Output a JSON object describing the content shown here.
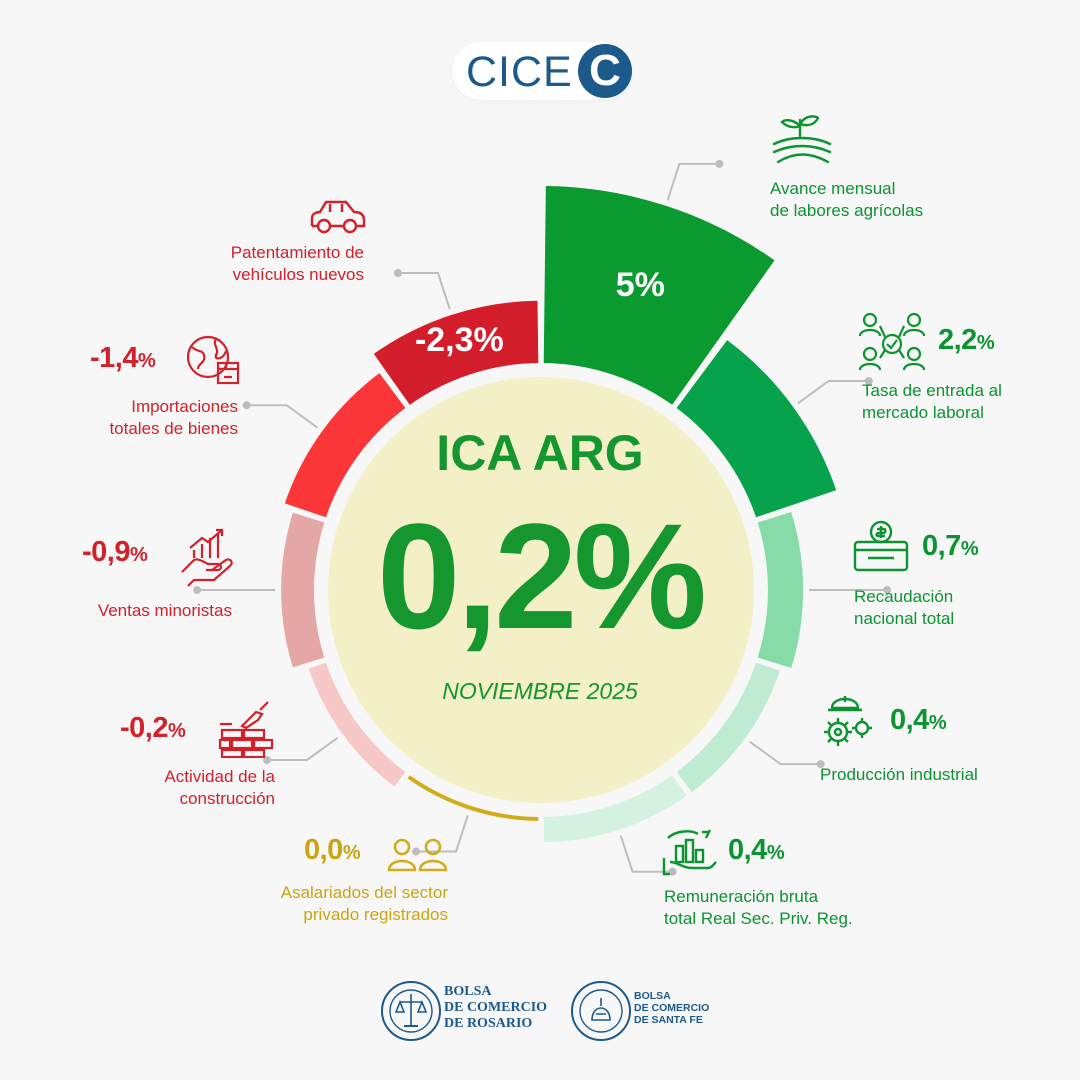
{
  "brand": {
    "logo_text": "CICE",
    "logo_letter": "C"
  },
  "center": {
    "title": "ICA ARG",
    "value": "0,2%",
    "date": "NOVIEMBRE 2025"
  },
  "colors": {
    "green": "#0b9431",
    "red": "#d3202a",
    "yellow": "#c9a512",
    "center_fill": "#f3efc6"
  },
  "chart_data": {
    "type": "polar-area",
    "title": "ICA ARG",
    "value_label": "0,2%",
    "period": "NOVIEMBRE 2025",
    "segments": [
      {
        "label": "Avance mensual de labores agrícolas",
        "value": 5.0,
        "value_label": "5%",
        "color": "#0b9a2f"
      },
      {
        "label": "Tasa de entrada al mercado laboral",
        "value": 2.2,
        "value_label": "2,2%",
        "color": "#06a24c"
      },
      {
        "label": "Recaudación nacional total",
        "value": 0.7,
        "value_label": "0,7%",
        "color": "#86dba8"
      },
      {
        "label": "Producción industrial",
        "value": 0.4,
        "value_label": "0,4%",
        "color": "#bfebd2"
      },
      {
        "label": "Remuneración bruta total Real Sec. Priv. Reg.",
        "value": 0.4,
        "value_label": "0,4%",
        "color": "#d4f1e1"
      },
      {
        "label": "Asalariados del sector privado registrados",
        "value": 0.0,
        "value_label": "0,0%",
        "color": "#d1ad1c"
      },
      {
        "label": "Actividad de la construcción",
        "value": -0.2,
        "value_label": "-0,2%",
        "color": "#f6c8c8"
      },
      {
        "label": "Ventas minoristas",
        "value": -0.9,
        "value_label": "-0,9%",
        "color": "#e5a6a6"
      },
      {
        "label": "Importaciones totales de bienes",
        "value": -1.4,
        "value_label": "-1,4%",
        "color": "#fb3639"
      },
      {
        "label": "Patentamiento de vehículos nuevos",
        "value": -2.3,
        "value_label": "-2,3%",
        "color": "#d41d2a"
      }
    ]
  },
  "indicators": {
    "agro": {
      "line1": "Avance mensual",
      "line2": "de labores agrícolas",
      "value": "5%"
    },
    "laboral": {
      "line1": "Tasa de entrada al",
      "line2": "mercado laboral",
      "value": "2,2",
      "pct": "%"
    },
    "recaudacion": {
      "line1": "Recaudación",
      "line2": "nacional total",
      "value": "0,7",
      "pct": "%"
    },
    "industrial": {
      "line1": "Producción industrial",
      "value": "0,4",
      "pct": "%"
    },
    "remuneracion": {
      "line1": "Remuneración bruta",
      "line2": "total Real Sec. Priv. Reg.",
      "value": "0,4",
      "pct": "%"
    },
    "asalariados": {
      "line1": "Asalariados del sector",
      "line2": "privado registrados",
      "value": "0,0",
      "pct": "%"
    },
    "construccion": {
      "line1": "Actividad de la",
      "line2": "construcción",
      "value": "-0,2",
      "pct": "%"
    },
    "minoristas": {
      "line1": "Ventas minoristas",
      "value": "-0,9",
      "pct": "%"
    },
    "importaciones": {
      "line1": "Importaciones",
      "line2": "totales de bienes",
      "value": "-1,4",
      "pct": "%"
    },
    "patentamiento": {
      "line1": "Patentamiento de",
      "line2": "vehículos nuevos",
      "value": "-2,3%"
    }
  },
  "footer": {
    "bcr": {
      "l1": "BOLSA",
      "l2": "DE COMERCIO",
      "l3": "DE ROSARIO"
    },
    "bcsf": {
      "l1": "BOLSA",
      "l2": "DE COMERCIO",
      "l3": "DE SANTA FE"
    }
  },
  "icons": {
    "agro": "plant-field-icon",
    "laboral": "people-network-icon",
    "recaudacion": "money-box-icon",
    "industrial": "gears-helmet-icon",
    "remuneracion": "hand-chart-icon",
    "asalariados": "two-people-icon",
    "construccion": "bricks-trowel-icon",
    "minoristas": "hand-growth-icon",
    "importaciones": "globe-box-icon",
    "patentamiento": "car-icon"
  }
}
